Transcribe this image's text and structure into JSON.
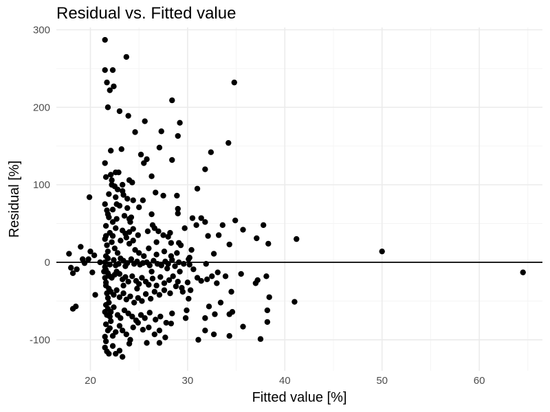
{
  "chart_data": {
    "type": "scatter",
    "title": "Residual vs. Fitted value",
    "xlabel": "Fitted value [%]",
    "ylabel": "Residual [%]",
    "xlim": [
      16.5,
      66.5
    ],
    "ylim": [
      -140,
      303
    ],
    "xticks": [
      20,
      30,
      40,
      50,
      60
    ],
    "xtick_labels": [
      "20",
      "30",
      "40",
      "50",
      "60"
    ],
    "yticks": [
      -100,
      0,
      100,
      200,
      300
    ],
    "ytick_labels": [
      "-100",
      "0",
      "100",
      "200",
      "300"
    ],
    "grid": true,
    "reference_line_y": 0,
    "colors": {
      "points": "#000000",
      "major_grid": "#ebebeb",
      "minor_grid": "#f4f4f4",
      "reference_line": "#000000"
    },
    "points": [
      [
        21.5,
        287
      ],
      [
        23.7,
        265
      ],
      [
        21.5,
        248
      ],
      [
        22.3,
        248
      ],
      [
        21.7,
        232
      ],
      [
        34.8,
        232
      ],
      [
        22.0,
        222
      ],
      [
        22.4,
        227
      ],
      [
        28.4,
        209
      ],
      [
        21.8,
        200
      ],
      [
        23.0,
        195
      ],
      [
        23.9,
        189
      ],
      [
        25.6,
        182
      ],
      [
        29.2,
        180
      ],
      [
        24.6,
        168
      ],
      [
        27.3,
        169
      ],
      [
        29.0,
        163
      ],
      [
        34.2,
        154
      ],
      [
        23.2,
        146
      ],
      [
        22.1,
        144
      ],
      [
        27.1,
        148
      ],
      [
        25.2,
        139
      ],
      [
        32.4,
        142
      ],
      [
        28.4,
        132
      ],
      [
        25.5,
        128
      ],
      [
        25.8,
        133
      ],
      [
        21.5,
        128
      ],
      [
        31.8,
        120
      ],
      [
        22.1,
        113
      ],
      [
        22.6,
        116
      ],
      [
        22.9,
        116
      ],
      [
        24.0,
        106
      ],
      [
        24.3,
        103
      ],
      [
        22.2,
        106
      ],
      [
        22.2,
        100
      ],
      [
        26.3,
        111
      ],
      [
        23.3,
        100
      ],
      [
        21.6,
        110
      ],
      [
        31.0,
        95
      ],
      [
        19.9,
        84
      ],
      [
        21.9,
        88
      ],
      [
        22.6,
        84
      ],
      [
        23.3,
        92
      ],
      [
        26.7,
        90
      ],
      [
        27.5,
        86
      ],
      [
        28.9,
        86
      ],
      [
        23.4,
        87
      ],
      [
        25.4,
        80
      ],
      [
        22.7,
        75
      ],
      [
        23.8,
        82
      ],
      [
        24.4,
        80
      ],
      [
        21.5,
        75
      ],
      [
        21.7,
        67
      ],
      [
        23.0,
        73
      ],
      [
        22.3,
        68
      ],
      [
        23.8,
        70
      ],
      [
        25.0,
        71
      ],
      [
        26.3,
        62
      ],
      [
        29.0,
        69
      ],
      [
        29.0,
        63
      ],
      [
        30.5,
        57
      ],
      [
        31.4,
        57
      ],
      [
        31.8,
        52
      ],
      [
        30.9,
        48
      ],
      [
        34.9,
        54
      ],
      [
        37.8,
        48
      ],
      [
        21.6,
        47
      ],
      [
        24.1,
        52
      ],
      [
        24.0,
        56
      ],
      [
        26.4,
        48
      ],
      [
        22.0,
        38
      ],
      [
        22.6,
        44
      ],
      [
        23.3,
        41
      ],
      [
        22.3,
        34
      ],
      [
        23.6,
        37
      ],
      [
        24.0,
        39
      ],
      [
        24.4,
        43
      ],
      [
        24.9,
        35
      ],
      [
        27.5,
        35
      ],
      [
        28.2,
        38
      ],
      [
        28.0,
        33
      ],
      [
        26.8,
        26
      ],
      [
        28.3,
        25
      ],
      [
        29.1,
        25
      ],
      [
        29.3,
        22
      ],
      [
        32.1,
        34
      ],
      [
        33.2,
        35
      ],
      [
        34.3,
        23
      ],
      [
        35.7,
        42
      ],
      [
        37.1,
        31
      ],
      [
        38.3,
        24
      ],
      [
        41.2,
        30
      ],
      [
        50.0,
        14
      ],
      [
        64.5,
        -13
      ],
      [
        19.0,
        20
      ],
      [
        17.8,
        11
      ],
      [
        18.6,
        -9
      ],
      [
        20.0,
        14
      ],
      [
        20.4,
        9
      ],
      [
        19.2,
        4
      ],
      [
        19.8,
        4
      ],
      [
        20.2,
        -13
      ],
      [
        18.0,
        -7
      ],
      [
        18.2,
        -14
      ],
      [
        19.4,
        -1
      ],
      [
        21.0,
        0
      ],
      [
        21.5,
        0
      ],
      [
        21.8,
        5
      ],
      [
        22.0,
        -3
      ],
      [
        22.4,
        3
      ],
      [
        22.6,
        -4
      ],
      [
        22.9,
        -2
      ],
      [
        23.1,
        5
      ],
      [
        23.4,
        2
      ],
      [
        23.6,
        -5
      ],
      [
        23.8,
        -1
      ],
      [
        24.2,
        4
      ],
      [
        24.5,
        -2
      ],
      [
        24.8,
        1
      ],
      [
        25.1,
        -3
      ],
      [
        25.4,
        -1
      ],
      [
        25.8,
        0
      ],
      [
        26.1,
        -4
      ],
      [
        26.5,
        2
      ],
      [
        26.9,
        -2
      ],
      [
        27.3,
        -4
      ],
      [
        27.7,
        1
      ],
      [
        28.0,
        -2
      ],
      [
        28.4,
        3
      ],
      [
        28.7,
        -5
      ],
      [
        29.1,
        0
      ],
      [
        29.6,
        -2
      ],
      [
        30.1,
        4
      ],
      [
        30.2,
        -3
      ],
      [
        31.9,
        -2
      ],
      [
        21.5,
        -6
      ],
      [
        21.6,
        -10
      ],
      [
        21.8,
        -14
      ],
      [
        22.0,
        -18
      ],
      [
        22.2,
        -20
      ],
      [
        22.5,
        -16
      ],
      [
        22.7,
        -12
      ],
      [
        23.0,
        -15
      ],
      [
        23.3,
        -22
      ],
      [
        23.6,
        -19
      ],
      [
        23.9,
        -25
      ],
      [
        24.3,
        -18
      ],
      [
        24.7,
        -24
      ],
      [
        25.0,
        -28
      ],
      [
        25.3,
        -20
      ],
      [
        25.7,
        -25
      ],
      [
        26.0,
        -29
      ],
      [
        26.4,
        -21
      ],
      [
        26.8,
        -30
      ],
      [
        27.2,
        -19
      ],
      [
        27.6,
        -27
      ],
      [
        28.1,
        -23
      ],
      [
        28.5,
        -18
      ],
      [
        29.0,
        -25
      ],
      [
        29.4,
        -33
      ],
      [
        30.0,
        -26
      ],
      [
        30.3,
        -36
      ],
      [
        31.0,
        -20
      ],
      [
        31.4,
        -24
      ],
      [
        32.0,
        -22
      ],
      [
        32.5,
        -18
      ],
      [
        33.1,
        -13
      ],
      [
        33.9,
        -18
      ],
      [
        35.5,
        -15
      ],
      [
        37.2,
        -23
      ],
      [
        37.0,
        -27
      ],
      [
        38.1,
        -18
      ],
      [
        21.6,
        -30
      ],
      [
        21.9,
        -34
      ],
      [
        22.1,
        -38
      ],
      [
        22.4,
        -42
      ],
      [
        22.7,
        -36
      ],
      [
        23.0,
        -45
      ],
      [
        23.4,
        -40
      ],
      [
        23.7,
        -48
      ],
      [
        24.1,
        -44
      ],
      [
        24.5,
        -52
      ],
      [
        24.9,
        -46
      ],
      [
        25.3,
        -50
      ],
      [
        25.7,
        -41
      ],
      [
        26.2,
        -47
      ],
      [
        26.6,
        -38
      ],
      [
        27.1,
        -42
      ],
      [
        27.6,
        -36
      ],
      [
        28.2,
        -40
      ],
      [
        28.8,
        -31
      ],
      [
        29.5,
        -38
      ],
      [
        30.1,
        -47
      ],
      [
        33.0,
        -27
      ],
      [
        34.5,
        -38
      ],
      [
        20.5,
        -42
      ],
      [
        21.6,
        -55
      ],
      [
        21.8,
        -60
      ],
      [
        22.1,
        -64
      ],
      [
        22.4,
        -58
      ],
      [
        22.8,
        -68
      ],
      [
        23.1,
        -72
      ],
      [
        23.5,
        -62
      ],
      [
        23.9,
        -66
      ],
      [
        24.3,
        -70
      ],
      [
        24.7,
        -75
      ],
      [
        25.2,
        -68
      ],
      [
        25.6,
        -72
      ],
      [
        26.1,
        -65
      ],
      [
        26.7,
        -74
      ],
      [
        27.2,
        -70
      ],
      [
        27.8,
        -78
      ],
      [
        28.4,
        -66
      ],
      [
        29.8,
        -72
      ],
      [
        29.9,
        -62
      ],
      [
        31.8,
        -72
      ],
      [
        32.2,
        -57
      ],
      [
        32.8,
        -67
      ],
      [
        33.4,
        -52
      ],
      [
        34.3,
        -67
      ],
      [
        34.6,
        -64
      ],
      [
        35.7,
        -83
      ],
      [
        38.4,
        -45
      ],
      [
        38.2,
        -62
      ],
      [
        38.2,
        -77
      ],
      [
        41.0,
        -51
      ],
      [
        18.2,
        -60
      ],
      [
        18.5,
        -57
      ],
      [
        21.6,
        -80
      ],
      [
        21.8,
        -88
      ],
      [
        22.0,
        -85
      ],
      [
        22.3,
        -95
      ],
      [
        22.6,
        -90
      ],
      [
        23.0,
        -82
      ],
      [
        23.3,
        -88
      ],
      [
        23.7,
        -93
      ],
      [
        24.1,
        -100
      ],
      [
        24.4,
        -84
      ],
      [
        24.9,
        -78
      ],
      [
        25.4,
        -87
      ],
      [
        26.0,
        -84
      ],
      [
        26.6,
        -93
      ],
      [
        27.1,
        -88
      ],
      [
        27.7,
        -97
      ],
      [
        28.3,
        -79
      ],
      [
        31.1,
        -100
      ],
      [
        31.8,
        -88
      ],
      [
        32.7,
        -93
      ],
      [
        34.3,
        -95
      ],
      [
        37.5,
        -99
      ],
      [
        21.5,
        -110
      ],
      [
        21.7,
        -115
      ],
      [
        21.9,
        -118
      ],
      [
        22.3,
        -108
      ],
      [
        22.6,
        -118
      ],
      [
        23.0,
        -114
      ],
      [
        23.3,
        -122
      ],
      [
        24.0,
        -105
      ],
      [
        25.8,
        -104
      ],
      [
        27.1,
        -104
      ],
      [
        21.4,
        -12
      ],
      [
        21.5,
        -20
      ],
      [
        21.6,
        -26
      ],
      [
        21.7,
        -40
      ],
      [
        21.8,
        -46
      ],
      [
        21.9,
        -52
      ],
      [
        22.0,
        -70
      ],
      [
        22.1,
        -76
      ],
      [
        21.5,
        -96
      ],
      [
        21.6,
        -102
      ],
      [
        21.5,
        30
      ],
      [
        21.7,
        22
      ],
      [
        21.8,
        14
      ],
      [
        21.6,
        8
      ],
      [
        22.2,
        26
      ],
      [
        22.5,
        18
      ],
      [
        22.8,
        12
      ],
      [
        23.1,
        28
      ],
      [
        24.6,
        16
      ],
      [
        25.0,
        12
      ],
      [
        25.5,
        8
      ],
      [
        26.0,
        18
      ],
      [
        26.8,
        10
      ],
      [
        27.6,
        14
      ],
      [
        28.3,
        8
      ],
      [
        28.9,
        12
      ],
      [
        30.2,
        6
      ],
      [
        32.7,
        11
      ],
      [
        21.9,
        58
      ],
      [
        21.8,
        62
      ],
      [
        22.3,
        52
      ],
      [
        22.7,
        56
      ],
      [
        23.5,
        60
      ],
      [
        24.2,
        58
      ],
      [
        26.6,
        44
      ],
      [
        27.0,
        40
      ],
      [
        24.0,
        24
      ],
      [
        24.4,
        28
      ],
      [
        23.7,
        32
      ],
      [
        22.5,
        98
      ],
      [
        22.8,
        94
      ],
      [
        21.6,
        34
      ],
      [
        33.6,
        48
      ],
      [
        30.4,
        16
      ],
      [
        29.7,
        44
      ],
      [
        25.9,
        40
      ],
      [
        23.4,
        -30
      ],
      [
        24.8,
        -34
      ],
      [
        26.3,
        -12
      ],
      [
        27.9,
        -8
      ],
      [
        29.2,
        -12
      ],
      [
        30.6,
        -9
      ],
      [
        21.5,
        -64
      ],
      [
        21.7,
        -68
      ]
    ]
  }
}
